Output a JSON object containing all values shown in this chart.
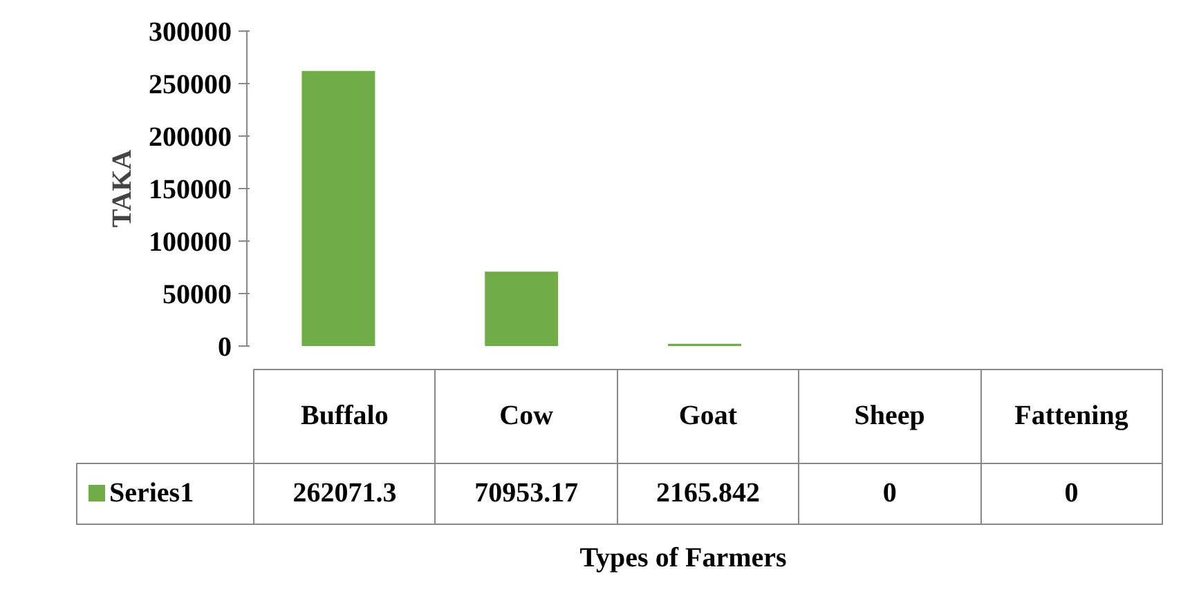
{
  "chart_data": {
    "type": "bar",
    "xlabel": "Types of Farmers",
    "ylabel": "TAKA",
    "categories": [
      "Buffalo",
      "Cow",
      "Goat",
      "Sheep",
      "Fattening"
    ],
    "series": [
      {
        "name": "Series1",
        "color": "#70ad47",
        "values": [
          262071.3,
          70953.17,
          2165.842,
          0,
          0
        ]
      }
    ],
    "ylim": [
      0,
      300000
    ],
    "yticks": [
      0,
      50000,
      100000,
      150000,
      200000,
      250000,
      300000
    ],
    "data_labels": true,
    "grid": false,
    "legend": "bottom"
  }
}
